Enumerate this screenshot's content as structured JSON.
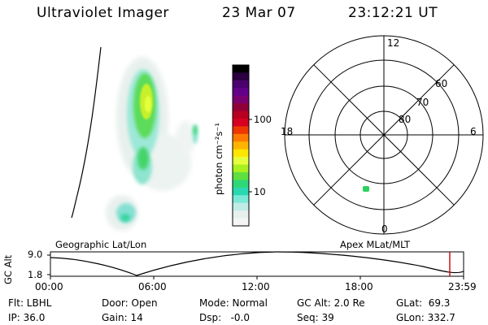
{
  "header": {
    "instrument": "Ultraviolet Imager",
    "date": "23 Mar 07",
    "time": "23:12:21 UT"
  },
  "colorbar": {
    "unit_label": "photon cm⁻²s⁻¹",
    "tick_labels": [
      "100",
      "10"
    ],
    "colors": [
      "#000000",
      "#2a0040",
      "#4b006e",
      "#62008a",
      "#7a0070",
      "#900038",
      "#b80020",
      "#d80020",
      "#ee3800",
      "#ff7a00",
      "#ffb400",
      "#ffe600",
      "#e6ff3c",
      "#a8f020",
      "#60e040",
      "#2ed878",
      "#2ad8b0",
      "#7ce8d8",
      "#c0ece6",
      "#e6f0ee",
      "#f4f6f4"
    ]
  },
  "polar": {
    "mlt_labels": {
      "top": "12",
      "bottom": "0",
      "left": "18",
      "right": "6"
    },
    "lat_labels": [
      "60",
      "70",
      "80"
    ],
    "point_color": "#30d060"
  },
  "map_labels": {
    "left": "Geographic Lat/Lon",
    "right": "Apex MLat/MLT"
  },
  "altitude": {
    "axis_label": "GC Alt",
    "max_label": "9.0",
    "min_label": "1.8",
    "time_ticks": [
      "00:00",
      "06:00",
      "12:00",
      "18:00",
      "23:59"
    ],
    "marker_color": "#cc0000"
  },
  "footer": {
    "row1": [
      {
        "text": "Flt: LBHL"
      },
      {
        "text": "Door: Open"
      },
      {
        "text": "Mode: Normal"
      },
      {
        "text": "GC Alt: 2.0 Re"
      },
      {
        "text": "GLat:  69.3"
      }
    ],
    "row2": [
      {
        "text": "IP: 36.0"
      },
      {
        "text": "Gain: 14"
      },
      {
        "text": "Dsp:   -0.0"
      },
      {
        "text": "Seq: 39"
      },
      {
        "text": "GLon: 332.7"
      }
    ]
  }
}
